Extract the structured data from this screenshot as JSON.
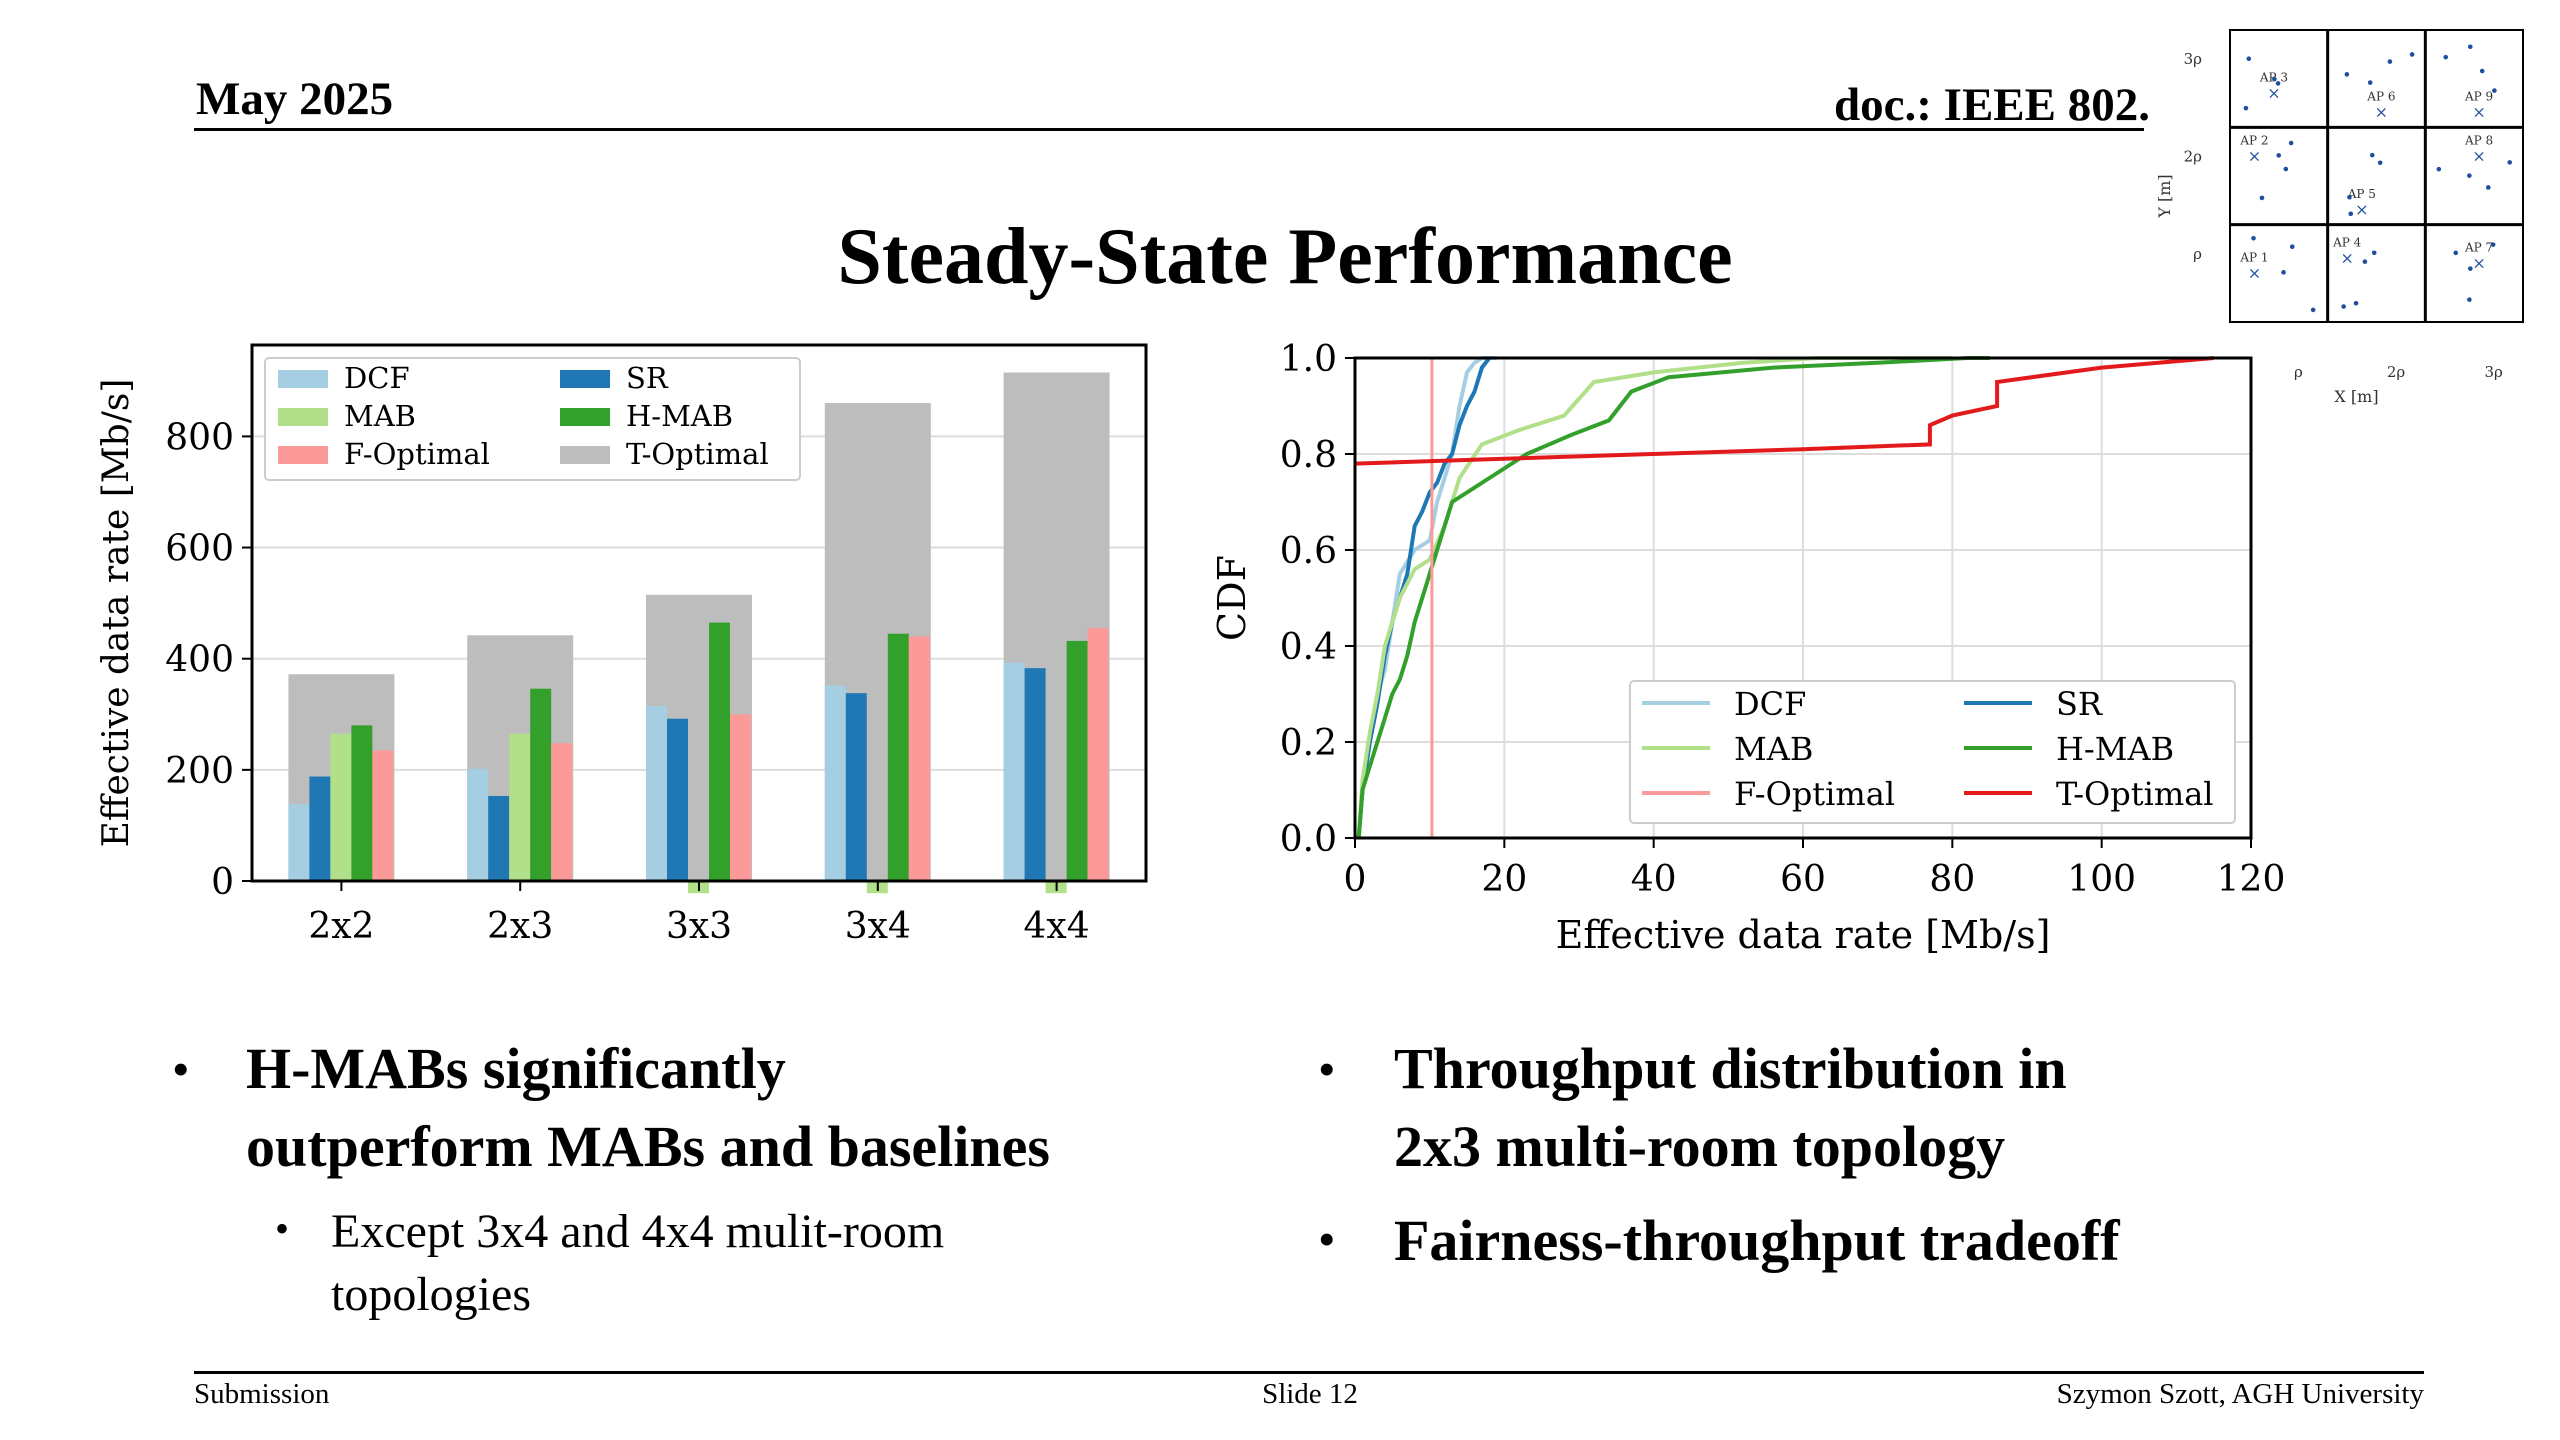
{
  "header": {
    "date": "May 2025",
    "doc": "doc.: IEEE 802."
  },
  "title": "Steady-State Performance",
  "footer": {
    "left": "Submission",
    "center": "Slide 12",
    "right": "Szymon Szott, AGH University"
  },
  "bullets_left": {
    "main": [
      "H-MABs significantly",
      "outperform MABs and baselines"
    ],
    "sub": [
      "Except 3x4 and 4x4 mulit-room",
      "topologies"
    ]
  },
  "bullets_right": {
    "first": [
      "Throughput distribution in",
      "2x3 multi-room topology"
    ],
    "second": "Fairness-throughput tradeoff"
  },
  "chart_data": [
    {
      "type": "bar",
      "ylabel": "Effective data rate [Mb/s]",
      "ylim": [
        0,
        950
      ],
      "yticks": [
        "0",
        "200",
        "400",
        "600",
        "800"
      ],
      "categories": [
        "2x2",
        "2x3",
        "3x3",
        "3x4",
        "4x4"
      ],
      "legend_position": "top-left",
      "series": [
        {
          "name": "T-Optimal",
          "color": "#bdbdbd",
          "values": [
            372,
            442,
            515,
            860,
            915
          ]
        },
        {
          "name": "DCF",
          "color": "#a6cee3",
          "values": [
            138,
            202,
            315,
            352,
            393
          ]
        },
        {
          "name": "SR",
          "color": "#1f78b4",
          "values": [
            188,
            153,
            292,
            338,
            383
          ]
        },
        {
          "name": "MAB",
          "color": "#b2df8a",
          "values": [
            265,
            265,
            -22,
            -22,
            -22
          ]
        },
        {
          "name": "H-MAB",
          "color": "#33a02c",
          "values": [
            280,
            346,
            465,
            445,
            432
          ]
        },
        {
          "name": "F-Optimal",
          "color": "#fb9a99",
          "values": [
            235,
            248,
            300,
            440,
            455
          ]
        }
      ]
    },
    {
      "type": "line",
      "ylabel": "CDF",
      "xlabel": "Effective data rate [Mb/s]",
      "xlim": [
        0,
        120
      ],
      "ylim": [
        0,
        1
      ],
      "xticks": [
        "0",
        "20",
        "40",
        "60",
        "80",
        "100",
        "120"
      ],
      "yticks": [
        "0.0",
        "0.2",
        "0.4",
        "0.6",
        "0.8",
        "1.0"
      ],
      "legend_position": "lower-right",
      "legend": [
        "DCF",
        "SR",
        "MAB",
        "H-MAB",
        "F-Optimal",
        "T-Optimal"
      ],
      "series": [
        {
          "name": "DCF",
          "color": "#a6cee3",
          "x": [
            0.5,
            1,
            2,
            3,
            4,
            5,
            6,
            8,
            10,
            11,
            12,
            13,
            14,
            15,
            16,
            17,
            18,
            19
          ],
          "y": [
            0,
            0.1,
            0.2,
            0.3,
            0.35,
            0.45,
            0.55,
            0.6,
            0.62,
            0.7,
            0.75,
            0.8,
            0.9,
            0.97,
            0.99,
            1,
            1,
            1
          ]
        },
        {
          "name": "SR",
          "color": "#1f78b4",
          "x": [
            0.5,
            1,
            2,
            3,
            4,
            5,
            6,
            7,
            8,
            9,
            10,
            11,
            12,
            13,
            14,
            15,
            16,
            17,
            18
          ],
          "y": [
            0,
            0.1,
            0.2,
            0.28,
            0.38,
            0.45,
            0.5,
            0.55,
            0.65,
            0.68,
            0.72,
            0.74,
            0.78,
            0.8,
            0.86,
            0.9,
            0.93,
            0.98,
            1
          ]
        },
        {
          "name": "MAB",
          "color": "#b2df8a",
          "x": [
            0.5,
            1,
            2,
            3,
            4,
            5,
            6,
            8,
            10,
            12,
            14,
            17,
            22,
            28,
            32,
            40,
            52,
            62,
            70,
            80
          ],
          "y": [
            0,
            0.12,
            0.22,
            0.3,
            0.4,
            0.45,
            0.5,
            0.56,
            0.58,
            0.65,
            0.75,
            0.82,
            0.85,
            0.88,
            0.95,
            0.97,
            0.99,
            1,
            1,
            1
          ]
        },
        {
          "name": "H-MAB",
          "color": "#33a02c",
          "x": [
            0.5,
            1,
            2,
            3,
            4,
            5,
            6,
            7,
            8,
            9,
            10,
            11,
            12,
            13,
            15,
            18,
            23,
            29,
            34,
            37,
            42,
            56,
            70,
            82,
            85
          ],
          "y": [
            0,
            0.1,
            0.15,
            0.2,
            0.25,
            0.3,
            0.33,
            0.38,
            0.45,
            0.5,
            0.55,
            0.6,
            0.65,
            0.7,
            0.72,
            0.75,
            0.8,
            0.84,
            0.87,
            0.93,
            0.96,
            0.98,
            0.99,
            1,
            1
          ]
        },
        {
          "name": "F-Optimal",
          "color": "#fb9a99",
          "x": [
            10.3,
            10.3
          ],
          "y": [
            0,
            1
          ]
        },
        {
          "name": "T-Optimal",
          "color": "#e31a1c",
          "x": [
            0,
            20,
            40,
            60,
            77,
            77,
            80,
            86,
            86,
            100,
            115
          ],
          "y": [
            0.78,
            0.79,
            0.8,
            0.81,
            0.82,
            0.86,
            0.88,
            0.9,
            0.95,
            0.98,
            1
          ]
        }
      ]
    },
    {
      "type": "scatter",
      "xlabel": "X [m]",
      "ylabel": "Y [m]",
      "xticks": [
        "ρ",
        "2ρ",
        "3ρ"
      ],
      "yticks": [
        "ρ",
        "2ρ",
        "3ρ"
      ],
      "aps": [
        "AP 1",
        "AP 2",
        "AP 3",
        "AP 4",
        "AP 5",
        "AP 6",
        "AP 7",
        "AP 8",
        "AP 9"
      ]
    }
  ]
}
